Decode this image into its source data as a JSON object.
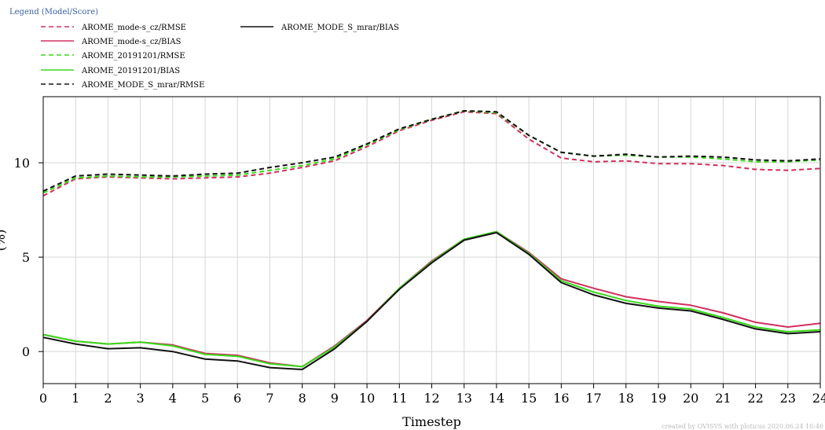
{
  "chart_data": {
    "type": "line",
    "title": "",
    "xlabel": "Timestep",
    "ylabel": "(%)",
    "legend_title": "Legend (Model/Score)",
    "credit": "created by OVISYS with ploticus 2020.06.24 10:46",
    "grid": true,
    "xlim": [
      0,
      24
    ],
    "ylim": [
      -1.7,
      13.5
    ],
    "xticks": [
      0,
      1,
      2,
      3,
      4,
      5,
      6,
      7,
      8,
      9,
      10,
      11,
      12,
      13,
      14,
      15,
      16,
      17,
      18,
      19,
      20,
      21,
      22,
      23,
      24
    ],
    "yticks": [
      0,
      5,
      10
    ],
    "x": [
      0,
      1,
      2,
      3,
      4,
      5,
      6,
      7,
      8,
      9,
      10,
      11,
      12,
      13,
      14,
      15,
      16,
      17,
      18,
      19,
      20,
      21,
      22,
      23,
      24
    ],
    "series": [
      {
        "name": "AROME_mode-s_cz/RMSE",
        "color": "#d0305e",
        "dashed": true,
        "values": [
          8.25,
          9.15,
          9.25,
          9.2,
          9.15,
          9.2,
          9.25,
          9.45,
          9.75,
          10.1,
          10.85,
          11.7,
          12.25,
          12.7,
          12.6,
          11.25,
          10.25,
          10.05,
          10.1,
          9.95,
          9.95,
          9.85,
          9.65,
          9.6,
          9.7
        ]
      },
      {
        "name": "AROME_mode-s_cz/BIAS",
        "color": "#d0305e",
        "dashed": false,
        "values": [
          0.9,
          0.55,
          0.4,
          0.5,
          0.35,
          -0.1,
          -0.2,
          -0.6,
          -0.8,
          0.3,
          1.65,
          3.35,
          4.8,
          5.95,
          6.35,
          5.25,
          3.85,
          3.35,
          2.9,
          2.65,
          2.45,
          2.05,
          1.55,
          1.3,
          1.5
        ]
      },
      {
        "name": "AROME_20191201/RMSE",
        "color": "#39d919",
        "dashed": true,
        "values": [
          8.4,
          9.2,
          9.3,
          9.25,
          9.25,
          9.3,
          9.35,
          9.6,
          9.85,
          10.2,
          10.95,
          11.75,
          12.3,
          12.75,
          12.65,
          11.45,
          10.55,
          10.35,
          10.4,
          10.3,
          10.3,
          10.2,
          10.05,
          10.05,
          10.15
        ]
      },
      {
        "name": "AROME_20191201/BIAS",
        "color": "#39d919",
        "dashed": false,
        "values": [
          0.9,
          0.55,
          0.4,
          0.5,
          0.3,
          -0.15,
          -0.25,
          -0.65,
          -0.8,
          0.25,
          1.6,
          3.35,
          4.75,
          5.95,
          6.35,
          5.2,
          3.75,
          3.15,
          2.7,
          2.4,
          2.25,
          1.8,
          1.3,
          1.05,
          1.15
        ]
      },
      {
        "name": "AROME_MODE_S_mrar/RMSE",
        "color": "#111111",
        "dashed": true,
        "values": [
          8.5,
          9.3,
          9.4,
          9.35,
          9.3,
          9.4,
          9.45,
          9.75,
          10.0,
          10.3,
          11.0,
          11.8,
          12.3,
          12.75,
          12.7,
          11.45,
          10.55,
          10.35,
          10.45,
          10.3,
          10.35,
          10.3,
          10.15,
          10.1,
          10.2
        ]
      },
      {
        "name": "AROME_MODE_S_mrar/BIAS",
        "color": "#111111",
        "dashed": false,
        "values": [
          0.75,
          0.4,
          0.15,
          0.2,
          0.0,
          -0.4,
          -0.5,
          -0.85,
          -0.95,
          0.15,
          1.6,
          3.3,
          4.7,
          5.9,
          6.3,
          5.15,
          3.65,
          3.0,
          2.55,
          2.3,
          2.15,
          1.7,
          1.2,
          0.95,
          1.05
        ]
      }
    ]
  }
}
